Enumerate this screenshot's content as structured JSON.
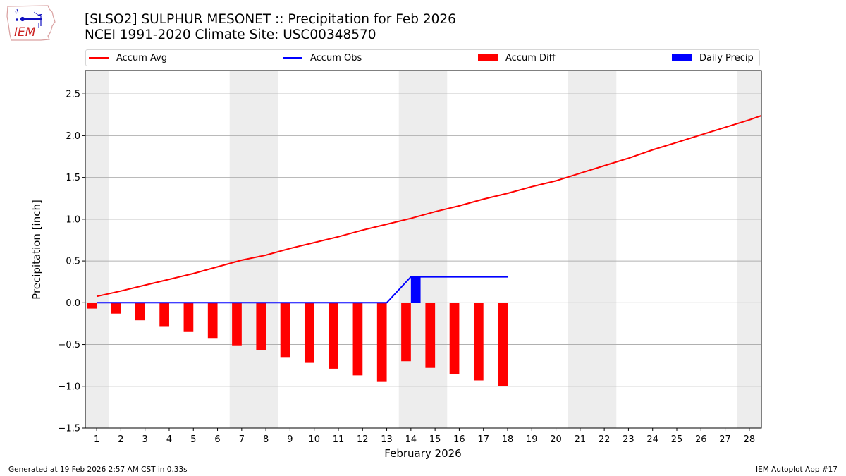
{
  "header": {
    "title_line1": "[SLSO2] SULPHUR MESONET :: Precipitation for Feb 2026",
    "title_line2": "NCEI 1991-2020 Climate Site: USC00348570",
    "logo_text": "IEM"
  },
  "legend": {
    "items": [
      {
        "label": "Accum Avg",
        "kind": "line",
        "color": "#ff0000"
      },
      {
        "label": "Accum Obs",
        "kind": "line",
        "color": "#0000ff"
      },
      {
        "label": "Accum Diff",
        "kind": "patch",
        "color": "#ff0000"
      },
      {
        "label": "Daily Precip",
        "kind": "patch",
        "color": "#0000ff"
      }
    ]
  },
  "axes": {
    "ylabel": "Precipitation [inch]",
    "xlabel": "February 2026"
  },
  "footer": {
    "left": "Generated at 19 Feb 2026 2:57 AM CST in 0.33s",
    "right": "IEM Autoplot App #17"
  },
  "colors": {
    "accum_avg": "#ff0000",
    "accum_obs": "#0000ff",
    "accum_diff": "#ff0000",
    "daily_precip": "#0000ff",
    "weekend_band": "#ededed",
    "grid": "#b0b0b0"
  },
  "chart_data": {
    "type": "bar",
    "title": "[SLSO2] SULPHUR MESONET :: Precipitation for Feb 2026",
    "subtitle": "NCEI 1991-2020 Climate Site: USC00348570",
    "xlabel": "February 2026",
    "ylabel": "Precipitation [inch]",
    "xlim": [
      0.53,
      28.5
    ],
    "ylim": [
      -1.5,
      2.78
    ],
    "yticks": [
      -1.5,
      -1.0,
      -0.5,
      0.0,
      0.5,
      1.0,
      1.5,
      2.0,
      2.5
    ],
    "ytick_labels": [
      "−1.5",
      "−1.0",
      "−0.5",
      "0.0",
      "0.5",
      "1.0",
      "1.5",
      "2.0",
      "2.5"
    ],
    "xticks": [
      1,
      2,
      3,
      4,
      5,
      6,
      7,
      8,
      9,
      10,
      11,
      12,
      13,
      14,
      15,
      16,
      17,
      18,
      19,
      20,
      21,
      22,
      23,
      24,
      25,
      26,
      27,
      28
    ],
    "grid": "y",
    "legend_position": "top",
    "weekend_bands": [
      [
        0.5,
        1.5
      ],
      [
        6.5,
        8.5
      ],
      [
        13.5,
        15.5
      ],
      [
        20.5,
        22.5
      ],
      [
        27.5,
        28.5
      ]
    ],
    "series": [
      {
        "name": "Accum Avg",
        "type": "line",
        "color": "#ff0000",
        "x": [
          1,
          2,
          3,
          4,
          5,
          6,
          7,
          8,
          9,
          10,
          11,
          12,
          13,
          14,
          15,
          16,
          17,
          18,
          19,
          20,
          21,
          22,
          23,
          24,
          25,
          26,
          27,
          28,
          28.5
        ],
        "values": [
          0.076,
          0.14,
          0.21,
          0.28,
          0.35,
          0.43,
          0.51,
          0.57,
          0.65,
          0.72,
          0.79,
          0.87,
          0.94,
          1.01,
          1.09,
          1.16,
          1.24,
          1.31,
          1.39,
          1.46,
          1.55,
          1.64,
          1.73,
          1.83,
          1.92,
          2.01,
          2.1,
          2.19,
          2.24
        ]
      },
      {
        "name": "Accum Obs",
        "type": "line",
        "color": "#0000ff",
        "x": [
          1,
          2,
          3,
          4,
          5,
          6,
          7,
          8,
          9,
          10,
          11,
          12,
          13,
          14,
          15,
          16,
          17,
          18
        ],
        "values": [
          0,
          0,
          0,
          0,
          0,
          0,
          0,
          0,
          0,
          0,
          0,
          0,
          0,
          0.31,
          0.31,
          0.31,
          0.31,
          0.31
        ]
      },
      {
        "name": "Accum Diff",
        "type": "bar",
        "color": "#ff0000",
        "offset": -0.2,
        "x": [
          1,
          2,
          3,
          4,
          5,
          6,
          7,
          8,
          9,
          10,
          11,
          12,
          13,
          14,
          15,
          16,
          17,
          18
        ],
        "values": [
          -0.07,
          -0.13,
          -0.21,
          -0.28,
          -0.35,
          -0.43,
          -0.51,
          -0.57,
          -0.65,
          -0.72,
          -0.79,
          -0.87,
          -0.94,
          -0.7,
          -0.78,
          -0.85,
          -0.93,
          -1.0
        ]
      },
      {
        "name": "Daily Precip",
        "type": "bar",
        "color": "#0000ff",
        "offset": 0.2,
        "x": [
          1,
          2,
          3,
          4,
          5,
          6,
          7,
          8,
          9,
          10,
          11,
          12,
          13,
          14,
          15,
          16,
          17,
          18
        ],
        "values": [
          0,
          0,
          0,
          0,
          0,
          0,
          0,
          0,
          0,
          0,
          0,
          0,
          0,
          0.31,
          0,
          0,
          0,
          0
        ]
      }
    ]
  }
}
